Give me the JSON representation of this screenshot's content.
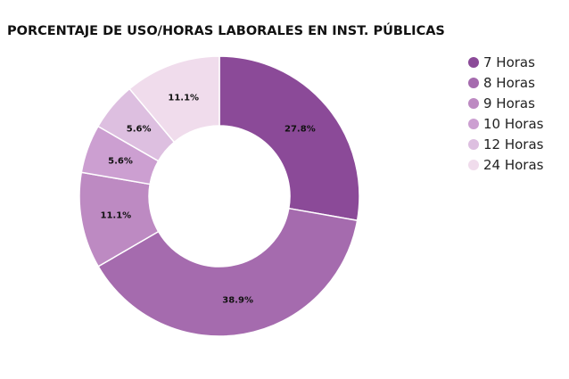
{
  "chart_data": {
    "type": "pie",
    "variant": "donut",
    "title": "PORCENTAJE DE USO/HORAS LABORALES EN INST. PÚBLICAS",
    "categories": [
      "7 Horas",
      "8 Horas",
      "9 Horas",
      "10 Horas",
      "12 Horas",
      "24 Horas"
    ],
    "values": [
      27.8,
      38.9,
      11.1,
      5.6,
      5.6,
      11.1
    ],
    "value_labels": [
      "27.8%",
      "38.9%",
      "11.1%",
      "5.6%",
      "5.6%",
      "11.1%"
    ],
    "colors": [
      "#8b4a98",
      "#a56bae",
      "#bd8ac2",
      "#cc9fd1",
      "#ddbfe0",
      "#f0dcec"
    ],
    "legend": {
      "position": "right",
      "entries": [
        "7 Horas",
        "8 Horas",
        "9 Horas",
        "10 Horas",
        "12 Horas",
        "24 Horas"
      ]
    }
  }
}
